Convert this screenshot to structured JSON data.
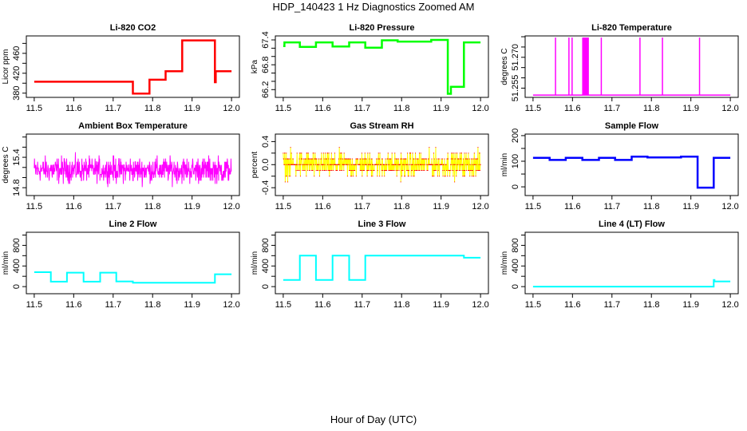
{
  "title": "HDP_140423  1 Hz Diagnostics Zoomed AM",
  "xlabel": "Hour of Day (UTC)",
  "chart_data": [
    {
      "type": "line",
      "title": "Li-820 CO2",
      "ylabel": "Licor ppm",
      "color": "#ff0000",
      "xlim": [
        11.48,
        12.02
      ],
      "ylim": [
        371.5,
        495
      ],
      "x_ticks": [
        11.5,
        11.6,
        11.7,
        11.8,
        11.9,
        12.0
      ],
      "x_tick_labels": [
        "11.5",
        "11.6",
        "11.7",
        "11.8",
        "11.9",
        "12.0"
      ],
      "y_ticks": [
        380,
        400,
        420,
        440,
        460,
        480
      ],
      "y_tick_labels": [
        "380",
        "",
        "420",
        "",
        "460",
        ""
      ],
      "series": [
        {
          "steps": [
            [
              11.5,
              11.75,
              403
            ],
            [
              11.75,
              11.792,
              379
            ],
            [
              11.792,
              11.833,
              407
            ],
            [
              11.833,
              11.875,
              424
            ],
            [
              11.875,
              11.958,
              486
            ],
            [
              11.958,
              11.96,
              402
            ],
            [
              11.96,
              12.0,
              424
            ]
          ]
        }
      ]
    },
    {
      "type": "line",
      "title": "Li-820 Pressure",
      "ylabel": "kPa",
      "color": "#00ff00",
      "xlim": [
        11.48,
        12.02
      ],
      "ylim": [
        66.013,
        67.496
      ],
      "x_ticks": [
        11.5,
        11.6,
        11.7,
        11.8,
        11.9,
        12.0
      ],
      "x_tick_labels": [
        "11.5",
        "11.6",
        "11.7",
        "11.8",
        "11.9",
        "12.0"
      ],
      "y_ticks": [
        66.2,
        66.4,
        66.6,
        66.8,
        67.0,
        67.2,
        67.4
      ],
      "y_tick_labels": [
        "66.2",
        "",
        "",
        "66.8",
        "",
        "",
        "67.4"
      ],
      "series": [
        {
          "steps": [
            [
              11.5,
              11.503,
              67.25
            ],
            [
              11.503,
              11.542,
              67.34
            ],
            [
              11.542,
              11.583,
              67.23
            ],
            [
              11.583,
              11.625,
              67.34
            ],
            [
              11.625,
              11.667,
              67.24
            ],
            [
              11.667,
              11.708,
              67.34
            ],
            [
              11.708,
              11.75,
              67.21
            ],
            [
              11.75,
              11.79,
              67.39
            ],
            [
              11.79,
              11.875,
              67.36
            ],
            [
              11.875,
              11.917,
              67.4
            ],
            [
              11.917,
              11.925,
              66.1
            ],
            [
              11.925,
              11.958,
              66.27
            ],
            [
              11.958,
              12.0,
              67.34
            ]
          ]
        }
      ]
    },
    {
      "type": "line",
      "title": "Li-820 Temperature",
      "ylabel": "degrees C",
      "color": "#ff00ff",
      "xlim": [
        11.48,
        12.02
      ],
      "ylim": [
        51.2505,
        51.2804
      ],
      "x_ticks": [
        11.5,
        11.6,
        11.7,
        11.8,
        11.9,
        12.0
      ],
      "x_tick_labels": [
        "11.5",
        "11.6",
        "11.7",
        "11.8",
        "11.9",
        "12.0"
      ],
      "y_ticks": [
        51.255,
        51.26,
        51.265,
        51.27,
        51.275,
        51.28
      ],
      "y_tick_labels": [
        "51.255",
        "",
        "",
        "51.270",
        "",
        ""
      ],
      "series": [
        {
          "baseline": 51.2516,
          "spike_level": 51.2796,
          "spikes_x": [
            11.557,
            11.591,
            11.599,
            11.626,
            11.629,
            11.632,
            11.635,
            11.638,
            11.64,
            11.673,
            11.771,
            11.828,
            11.922
          ]
        }
      ]
    },
    {
      "type": "line",
      "title": "Ambient Box Temperature",
      "ylabel": "degrees C",
      "color": "#ff00ff",
      "xlim": [
        11.48,
        12.02
      ],
      "ylim": [
        14.645,
        15.858
      ],
      "x_ticks": [
        11.5,
        11.6,
        11.7,
        11.8,
        11.9,
        12.0
      ],
      "x_tick_labels": [
        "11.5",
        "11.6",
        "11.7",
        "11.8",
        "11.9",
        "12.0"
      ],
      "y_ticks": [
        14.8,
        15.0,
        15.2,
        15.4,
        15.6,
        15.8
      ],
      "y_tick_labels": [
        "14.8",
        "",
        "",
        "15.4",
        "",
        ""
      ],
      "series": [
        {
          "noise": {
            "x_range": [
              11.5,
              12.0
            ],
            "center": 15.15,
            "spread": 0.15,
            "min": 14.73,
            "max": 15.8,
            "step": 0.0625
          }
        }
      ]
    },
    {
      "type": "line",
      "title": "Gas Stream RH",
      "ylabel": "percent",
      "color": "#ffff00",
      "point_color": "#ff0000",
      "xlim": [
        11.48,
        12.02
      ],
      "ylim": [
        -0.536,
        0.53
      ],
      "x_ticks": [
        11.5,
        11.6,
        11.7,
        11.8,
        11.9,
        12.0
      ],
      "x_tick_labels": [
        "11.5",
        "11.6",
        "11.7",
        "11.8",
        "11.9",
        "12.0"
      ],
      "y_ticks": [
        -0.4,
        -0.2,
        0.0,
        0.2,
        0.4
      ],
      "y_tick_labels": [
        "-0.4",
        "",
        "0.0",
        "",
        "0.4"
      ],
      "series": [
        {
          "noise": {
            "x_range": [
              11.5,
              12.0
            ],
            "center": 0.0,
            "spread": 0.13,
            "min": -0.5,
            "max": 0.5,
            "step": 0.1
          }
        }
      ]
    },
    {
      "type": "line",
      "title": "Sample Flow",
      "ylabel": "ml/min",
      "color": "#0000ff",
      "xlim": [
        11.48,
        12.02
      ],
      "ylim": [
        -34,
        206
      ],
      "x_ticks": [
        11.5,
        11.6,
        11.7,
        11.8,
        11.9,
        12.0
      ],
      "x_tick_labels": [
        "11.5",
        "11.6",
        "11.7",
        "11.8",
        "11.9",
        "12.0"
      ],
      "y_ticks": [
        0,
        50,
        100,
        150,
        200
      ],
      "y_tick_labels": [
        "0",
        "",
        "100",
        "",
        "200"
      ],
      "series": [
        {
          "steps": [
            [
              11.5,
              11.542,
              113
            ],
            [
              11.542,
              11.583,
              105
            ],
            [
              11.583,
              11.625,
              113
            ],
            [
              11.625,
              11.667,
              105
            ],
            [
              11.667,
              11.708,
              113
            ],
            [
              11.708,
              11.75,
              105
            ],
            [
              11.75,
              11.79,
              118
            ],
            [
              11.79,
              11.875,
              115
            ],
            [
              11.875,
              11.917,
              118
            ],
            [
              11.917,
              11.958,
              -3
            ],
            [
              11.958,
              12.0,
              113
            ]
          ]
        }
      ]
    },
    {
      "type": "line",
      "title": "Line 2 Flow",
      "ylabel": "ml/min",
      "color": "#00ffff",
      "xlim": [
        11.48,
        12.02
      ],
      "ylim": [
        -138,
        1054
      ],
      "x_ticks": [
        11.5,
        11.6,
        11.7,
        11.8,
        11.9,
        12.0
      ],
      "x_tick_labels": [
        "11.5",
        "11.6",
        "11.7",
        "11.8",
        "11.9",
        "12.0"
      ],
      "y_ticks": [
        0,
        200,
        400,
        600,
        800,
        1000
      ],
      "y_tick_labels": [
        "0",
        "",
        "400",
        "",
        "800",
        ""
      ],
      "series": [
        {
          "steps": [
            [
              11.5,
              11.542,
              280
            ],
            [
              11.542,
              11.583,
              95
            ],
            [
              11.583,
              11.625,
              270
            ],
            [
              11.625,
              11.667,
              95
            ],
            [
              11.667,
              11.708,
              270
            ],
            [
              11.708,
              11.75,
              100
            ],
            [
              11.75,
              11.958,
              75
            ],
            [
              11.958,
              12.0,
              240
            ]
          ]
        }
      ]
    },
    {
      "type": "line",
      "title": "Line 3 Flow",
      "ylabel": "ml/min",
      "color": "#00ffff",
      "xlim": [
        11.48,
        12.02
      ],
      "ylim": [
        -138,
        1054
      ],
      "x_ticks": [
        11.5,
        11.6,
        11.7,
        11.8,
        11.9,
        12.0
      ],
      "x_tick_labels": [
        "11.5",
        "11.6",
        "11.7",
        "11.8",
        "11.9",
        "12.0"
      ],
      "y_ticks": [
        0,
        200,
        400,
        600,
        800,
        1000
      ],
      "y_tick_labels": [
        "0",
        "",
        "400",
        "",
        "800",
        ""
      ],
      "series": [
        {
          "steps": [
            [
              11.5,
              11.542,
              130
            ],
            [
              11.542,
              11.583,
              600
            ],
            [
              11.583,
              11.625,
              130
            ],
            [
              11.625,
              11.667,
              600
            ],
            [
              11.667,
              11.708,
              130
            ],
            [
              11.708,
              11.958,
              600
            ],
            [
              11.958,
              12.0,
              560
            ]
          ]
        }
      ]
    },
    {
      "type": "line",
      "title": "Line 4 (LT) Flow",
      "ylabel": "ml/min",
      "color": "#00ffff",
      "xlim": [
        11.48,
        12.02
      ],
      "ylim": [
        -138,
        1054
      ],
      "x_ticks": [
        11.5,
        11.6,
        11.7,
        11.8,
        11.9,
        12.0
      ],
      "x_tick_labels": [
        "11.5",
        "11.6",
        "11.7",
        "11.8",
        "11.9",
        "12.0"
      ],
      "y_ticks": [
        0,
        200,
        400,
        600,
        800,
        1000
      ],
      "y_tick_labels": [
        "0",
        "",
        "400",
        "",
        "800",
        ""
      ],
      "series": [
        {
          "steps": [
            [
              11.5,
              11.958,
              0
            ],
            [
              11.958,
              11.96,
              130
            ],
            [
              11.96,
              12.0,
              100
            ]
          ]
        }
      ]
    }
  ]
}
